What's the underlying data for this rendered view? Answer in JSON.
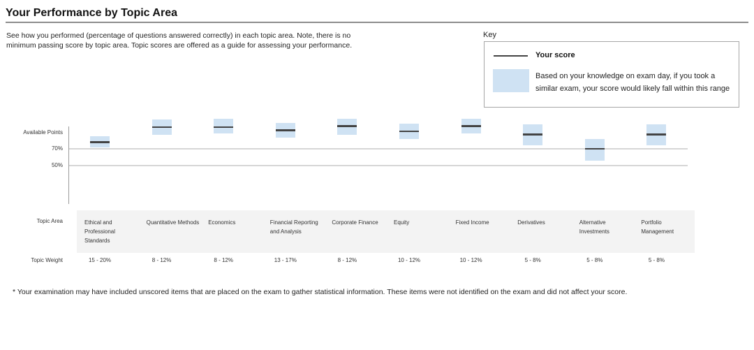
{
  "page": {
    "title": "Your Performance by Topic Area",
    "description_lines": [
      "See how you performed (percentage of questions answered correctly) in each topic area. Note, there is no",
      "minimum passing score by topic area. Topic scores are offered as a guide for assessing your performance."
    ],
    "footnote": "* Your examination may have included unscored items that are placed on the exam to gather statistical information. These items were not identified on the exam and did not affect your score."
  },
  "key": {
    "label": "Key",
    "score_label": "Your score",
    "range_lines": [
      "Based on your knowledge on exam day, if you took a",
      "similar exam, your score would likely fall within this range"
    ]
  },
  "axis": {
    "top_label": "Available Points",
    "tick_70": "70%",
    "tick_50": "50%",
    "row_topic_area": "Topic Area",
    "row_topic_weight": "Topic Weight"
  },
  "colors": {
    "band_blue": "#cfe2f3",
    "score_line": "#434343",
    "gridline": "#d6d6d6",
    "row_band_gray": "#f3f3f3"
  },
  "chart_data": {
    "type": "range-bar",
    "title": "Your Performance by Topic Area",
    "ylabel": "",
    "y_axis_ticks": [
      "Available Points",
      "70%",
      "50%"
    ],
    "gridlines_pct": [
      70,
      50
    ],
    "legend": [
      {
        "label": "Your score",
        "swatch": "dark-line"
      },
      {
        "label": "Likely score range",
        "swatch": "blue-box"
      }
    ],
    "topics": [
      {
        "name": "Ethical and Professional Standards",
        "weight": "15 - 20%",
        "score_pct": 78,
        "band_low_pct": 72,
        "band_high_pct": 85
      },
      {
        "name": "Quantitative Methods",
        "weight": "8 - 12%",
        "score_pct": 96,
        "band_low_pct": 87,
        "band_high_pct": 105
      },
      {
        "name": "Economics",
        "weight": "8 - 12%",
        "score_pct": 96,
        "band_low_pct": 88,
        "band_high_pct": 106
      },
      {
        "name": "Financial Reporting and Analysis",
        "weight": "13 - 17%",
        "score_pct": 92,
        "band_low_pct": 83,
        "band_high_pct": 101
      },
      {
        "name": "Corporate Finance",
        "weight": "8 - 12%",
        "score_pct": 97,
        "band_low_pct": 87,
        "band_high_pct": 106
      },
      {
        "name": "Equity",
        "weight": "10 - 12%",
        "score_pct": 91,
        "band_low_pct": 82,
        "band_high_pct": 100
      },
      {
        "name": "Fixed Income",
        "weight": "10 - 12%",
        "score_pct": 97,
        "band_low_pct": 88,
        "band_high_pct": 106
      },
      {
        "name": "Derivatives",
        "weight": "5 - 8%",
        "score_pct": 87,
        "band_low_pct": 74,
        "band_high_pct": 99
      },
      {
        "name": "Alternative Investments",
        "weight": "5 - 8%",
        "score_pct": 70,
        "band_low_pct": 56,
        "band_high_pct": 82
      },
      {
        "name": "Portfolio Management",
        "weight": "5 - 8%",
        "score_pct": 87,
        "band_low_pct": 74,
        "band_high_pct": 99
      }
    ]
  }
}
